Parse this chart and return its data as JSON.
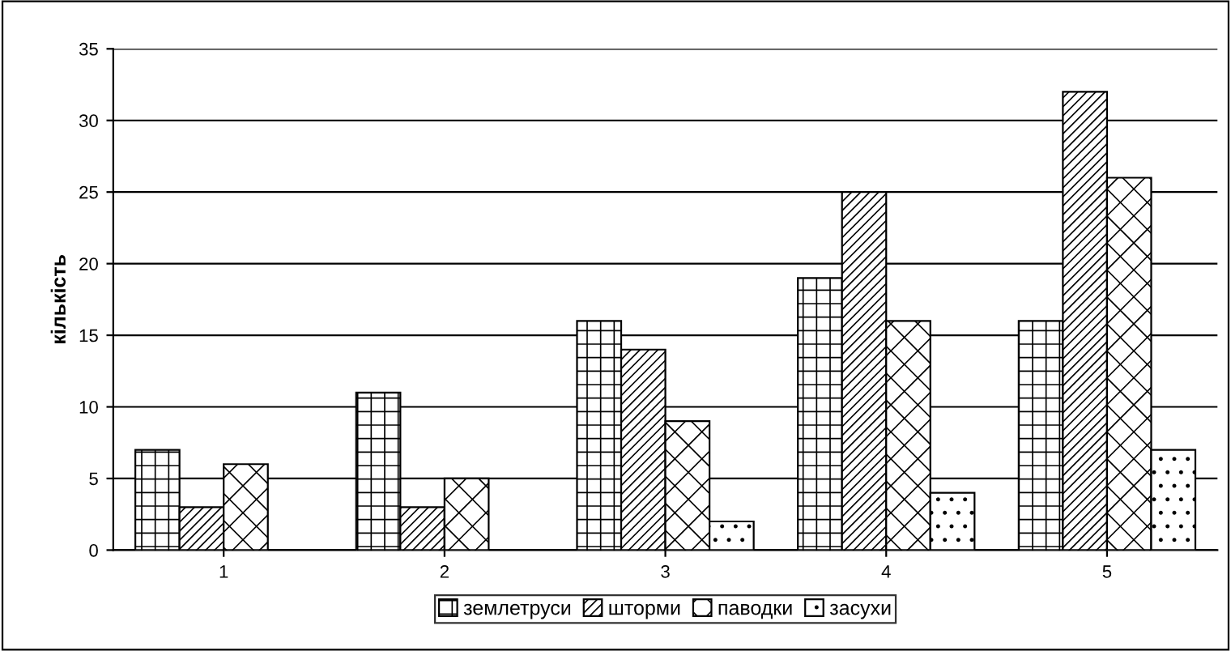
{
  "chart_data": {
    "type": "bar",
    "ylabel": "кількість",
    "categories": [
      "1",
      "2",
      "3",
      "4",
      "5"
    ],
    "series": [
      {
        "name": "землетруси",
        "color": "#000000",
        "values": [
          7,
          11,
          16,
          19,
          16
        ]
      },
      {
        "name": "шторми",
        "color": "#000000",
        "values": [
          3,
          3,
          14,
          25,
          32
        ]
      },
      {
        "name": "паводки",
        "color": "#000000",
        "values": [
          6,
          5,
          9,
          16,
          26
        ]
      },
      {
        "name": "засухи",
        "color": "#000000",
        "values": [
          null,
          null,
          2,
          4,
          7
        ]
      }
    ],
    "ylim": [
      0,
      35
    ],
    "yticks": [
      0,
      5,
      10,
      15,
      20,
      25,
      30,
      35
    ],
    "grid": "y",
    "legend": "bottom"
  }
}
